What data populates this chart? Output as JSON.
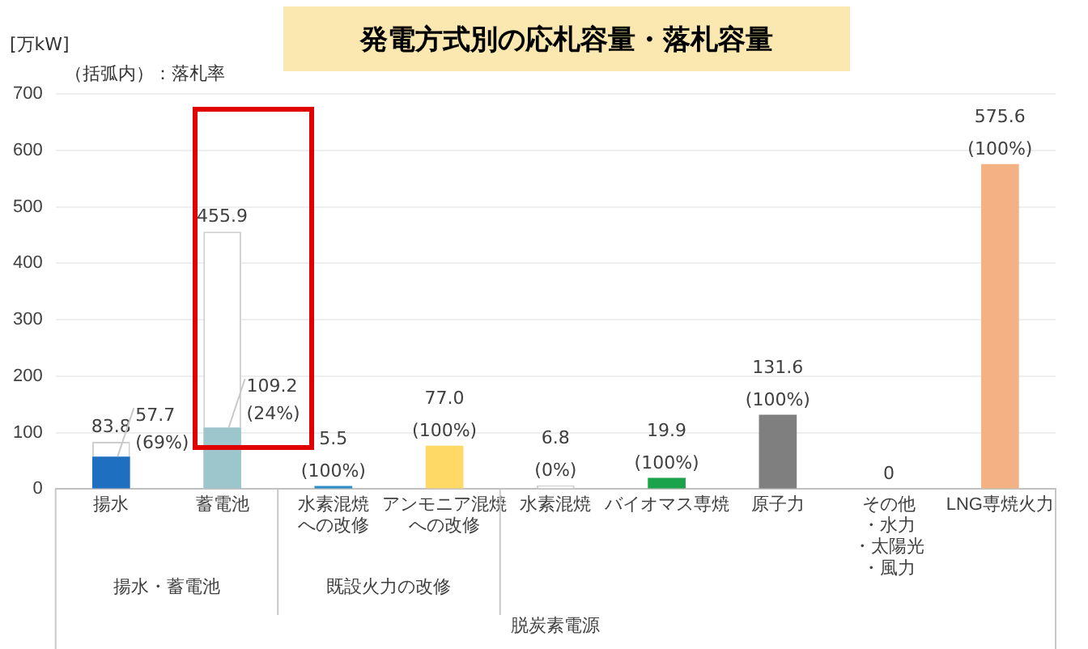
{
  "chart_data": {
    "type": "bar",
    "title": "発電方式別の応札容量・落札容量",
    "ylabel": "[万kW]",
    "annotations": [
      "（括弧内）：落札率",
      "揚水・蓄電池",
      "既設火力の改修",
      "脱炭素電源",
      {
        "text": "(69%)",
        "x": "揚水",
        "y": 57.7
      },
      {
        "text": "(24%)",
        "x": "蓄電池",
        "y": 109.2
      },
      {
        "text": "(100%)",
        "x": "水素混焼への改修",
        "y": 5.5
      },
      {
        "text": "(100%)",
        "x": "アンモニア混焼への改修",
        "y": 77.0
      },
      {
        "text": "(0%)",
        "x": "水素混焼",
        "y": 6.8
      },
      {
        "text": "(100%)",
        "x": "バイオマス専焼",
        "y": 19.9
      },
      {
        "text": "(100%)",
        "x": "原子力",
        "y": 131.6
      },
      {
        "text": "(100%)",
        "x": "LNG専焼火力",
        "y": 575.6
      }
    ],
    "categories": [
      "揚水",
      "蓄電池",
      "水素混焼への改修",
      "アンモニア混焼への改修",
      "水素混焼",
      "バイオマス専焼",
      "原子力",
      "その他・水力・太陽光・風力",
      "LNG専焼火力"
    ],
    "stacked": true,
    "series": [
      {
        "colors": [
          "#1f6fc0",
          "#9cc5cc",
          "#2e8fc7",
          "#ffd966",
          "#e8e8e8",
          "#1aa34a",
          "#7f7f7f",
          "#ffffff",
          "#f4b183"
        ],
        "values": [
          57.7,
          109.2,
          5.5,
          77.0,
          0,
          19.9,
          131.6,
          0,
          575.6
        ],
        "value_labels": [
          "57.7",
          "109.2",
          null,
          null,
          null,
          null,
          null,
          null,
          null
        ]
      },
      {
        "color": "#ffffff",
        "values": [
          26.1,
          346.7,
          0,
          0,
          6.8,
          0,
          0,
          0,
          0
        ]
      }
    ],
    "totals": [
      "83.8",
      "455.9",
      "5.5",
      "77.0",
      "6.8",
      "19.9",
      "131.6",
      "0",
      "575.6"
    ],
    "ylim": [
      0,
      700
    ],
    "yticks": [
      0,
      100,
      200,
      300,
      400,
      500,
      600,
      700
    ],
    "grid": "y",
    "legend": false
  }
}
